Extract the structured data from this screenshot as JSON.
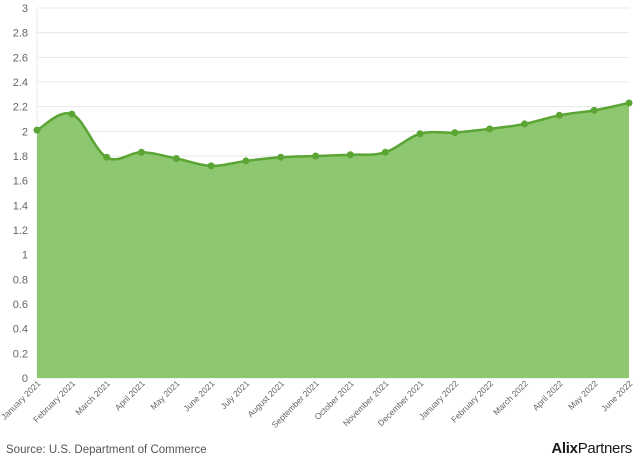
{
  "chart_data": {
    "type": "area",
    "categories": [
      "January 2021",
      "February 2021",
      "March 2021",
      "April 2021",
      "May 2021",
      "June 2021",
      "July 2021",
      "August 2021",
      "September 2021",
      "October 2021",
      "November 2021",
      "December 2021",
      "January 2022",
      "February 2022",
      "March 2022",
      "April 2022",
      "May 2022",
      "June 2022"
    ],
    "values": [
      2.01,
      2.14,
      1.79,
      1.83,
      1.78,
      1.72,
      1.76,
      1.79,
      1.8,
      1.81,
      1.83,
      1.98,
      1.99,
      2.02,
      2.06,
      2.13,
      2.17,
      2.23
    ],
    "ylim": [
      0,
      3
    ],
    "yticks": [
      "0",
      "0.2",
      "0.4",
      "0.6",
      "0.8",
      "1",
      "1.2",
      "1.4",
      "1.6",
      "1.8",
      "2",
      "2.2",
      "2.4",
      "2.6",
      "2.8",
      "3"
    ],
    "grid": true,
    "colors": {
      "fill": "#8dc76f",
      "line": "#5aa534",
      "point": "#5aa534",
      "grid": "#e8e8e8"
    }
  },
  "footer": {
    "source": "Source: U.S. Department of Commerce",
    "brand_part1": "Alix",
    "brand_part2": "Partners"
  }
}
